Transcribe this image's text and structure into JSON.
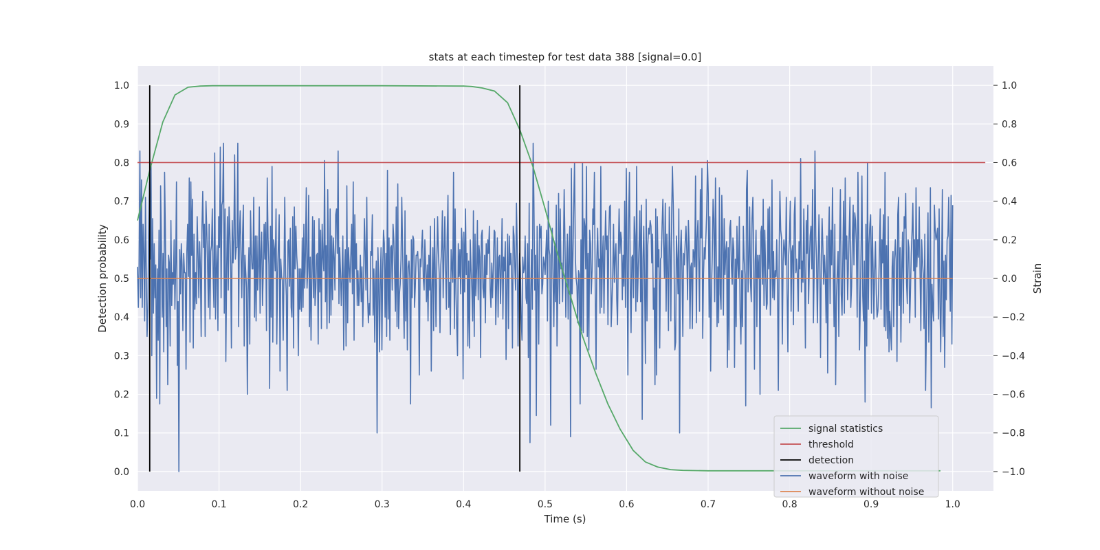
{
  "chart_data": {
    "type": "line",
    "title": "stats at each timestep for test data 388 [signal=0.0]",
    "xlabel": "Time (s)",
    "ylabel": "Detection probability",
    "y2label": "Strain",
    "xlim": [
      0.0,
      1.05
    ],
    "ylim": [
      -0.05,
      1.05
    ],
    "y2lim": [
      -1.1,
      1.1
    ],
    "grid": true,
    "legend_position": "bottom-right",
    "x_ticks": [
      "0.0",
      "0.1",
      "0.2",
      "0.3",
      "0.4",
      "0.5",
      "0.6",
      "0.7",
      "0.8",
      "0.9",
      "1.0"
    ],
    "y_ticks": [
      "0.0",
      "0.1",
      "0.2",
      "0.3",
      "0.4",
      "0.5",
      "0.6",
      "0.7",
      "0.8",
      "0.9",
      "1.0"
    ],
    "y2_ticks": [
      "−1.0",
      "−0.8",
      "−0.6",
      "−0.4",
      "−0.2",
      "0.0",
      "0.2",
      "0.4",
      "0.6",
      "0.8",
      "1.0"
    ],
    "series": [
      {
        "name": "signal statistics",
        "axis": "left",
        "color": "#55a868",
        "x": [
          0.0,
          0.015,
          0.031,
          0.046,
          0.062,
          0.077,
          0.092,
          0.108,
          0.2,
          0.3,
          0.4,
          0.41,
          0.423,
          0.438,
          0.454,
          0.469,
          0.485,
          0.5,
          0.515,
          0.531,
          0.546,
          0.562,
          0.577,
          0.592,
          0.608,
          0.623,
          0.638,
          0.654,
          0.669,
          0.7,
          0.8,
          0.9,
          0.985
        ],
        "y": [
          0.65,
          0.78,
          0.905,
          0.975,
          0.995,
          0.998,
          0.999,
          0.999,
          0.999,
          0.999,
          0.998,
          0.997,
          0.993,
          0.985,
          0.955,
          0.885,
          0.79,
          0.68,
          0.565,
          0.455,
          0.35,
          0.255,
          0.175,
          0.11,
          0.055,
          0.025,
          0.012,
          0.005,
          0.003,
          0.002,
          0.002,
          0.002,
          0.002
        ]
      },
      {
        "name": "threshold",
        "axis": "left",
        "color": "#c44e52",
        "x": [
          0.0,
          1.04
        ],
        "y": [
          0.8,
          0.8
        ]
      },
      {
        "name": "detection",
        "axis": "left",
        "color": "#000000",
        "x": [
          0.015,
          0.469
        ],
        "y": [
          0.0,
          1.0
        ]
      },
      {
        "name": "waveform with noise",
        "axis": "right",
        "color": "#4c72b0",
        "x_start": 0.0,
        "x_end": 1.0,
        "values": [
          0.06,
          -0.15,
          0.07,
          0.66,
          -0.1,
          0.51,
          -0.15,
          0.28,
          0.14,
          -0.22,
          0.42,
          0.05,
          -0.3,
          -0.16,
          0.22,
          0.5,
          0.1,
          0.6,
          -0.4,
          0.31,
          -0.18,
          0.18,
          -0.1,
          0.07,
          -0.62,
          0.05,
          -0.32,
          0.25,
          -0.65,
          0.48,
          0.2,
          -0.2,
          0.13,
          -0.38,
          0.55,
          0.25,
          -0.25,
          0.05,
          -0.55,
          0.12,
          0.08,
          -0.35,
          0.3,
          -0.14,
          0.03,
          -0.03,
          0.2,
          -0.16,
          0.08,
          0.5,
          -0.45,
          -0.12,
          -1.0,
          0.15,
          -0.08,
          0.18,
          0.07,
          -0.27,
          0.13,
          0.03,
          0.03,
          -0.47,
          0.14,
          0.28,
          0.01,
          0.52,
          -0.33,
          0.5,
          0.12,
          0.41,
          -0.36,
          0.23,
          -0.16,
          0.03,
          -0.13,
          0.32,
          0.13,
          -0.1,
          0.19,
          0.05,
          -0.3,
          0.27,
          0.45,
          0.16,
          0.28,
          -0.3,
          0.4,
          0.26,
          0.08,
          -0.15,
          0.28,
          -0.21,
          0.14,
          0.17,
          0.36,
          0.02,
          -0.15,
          0.65,
          -0.21,
          0.04,
          0.17,
          -0.27,
          0.32,
          0.16,
          0.68,
          -0.1,
          0.38,
          0.4,
          0.7,
          -0.18,
          0.36,
          -0.43,
          0.05,
          0.32,
          -0.06,
          0.37,
          0.25,
          0.06,
          -0.36,
          0.3,
          0.08,
          0.2,
          0.64,
          0.1,
          0.16,
          0.16,
          0.7,
          -0.25,
          0.22,
          0.35,
          0.13,
          -0.1,
          0.22,
          0.38,
          -0.35,
          0.12,
          0.03,
          -0.05,
          -0.6,
          0.0,
          0.16,
          -0.34,
          0.35,
          0.13,
          0.05,
          0.05,
          0.42,
          -0.2,
          0.22,
          -0.22,
          0.22,
          -0.06,
          0.07,
          0.37,
          -0.18,
          0.14,
          0.24,
          -0.14,
          0.05,
          0.28,
          0.1,
          0.29,
          -0.27,
          0.52,
          0.21,
          0.07,
          -0.57,
          0.27,
          -0.2,
          0.58,
          -0.33,
          0.2,
          0.15,
          0.04,
          0.36,
          -0.34,
          0.03,
          0.18,
          0.33,
          -0.48,
          0.1,
          0.01,
          -0.01,
          -0.32,
          0.04,
          0.42,
          0.02,
          -0.09,
          -0.58,
          0.19,
          0.2,
          -0.04,
          0.26,
          -0.15,
          -0.2,
          0.32,
          -0.36,
          0.37,
          0.05,
          0.27,
          0.12,
          0.05,
          -0.4,
          0.05,
          -0.16,
          0.05,
          -0.17,
          0.21,
          -0.15,
          0.28,
          -0.05,
          0.14,
          0.47,
          -0.05,
          0.06,
          0.43,
          -0.25,
          0.11,
          -0.32,
          0.03,
          0.32,
          -0.1,
          0.3,
          -0.14,
          -0.05,
          0.12,
          0.13,
          -0.34,
          0.31,
          -0.07,
          0.25,
          -0.26,
          0.28,
          0.11,
          0.04,
          0.61,
          -0.12,
          0.17,
          -0.26,
          0.46,
          0.08,
          -0.23,
          0.36,
          -0.19,
          0.22,
          -0.11,
          0.21,
          0.11,
          -0.06,
          0.33,
          0.36,
          0.13,
          0.66,
          -0.13,
          0.16,
          0.03,
          -0.14,
          0.02,
          0.22,
          -0.37,
          0.04,
          0.15,
          -0.35,
          0.48,
          -0.23,
          0.16,
          0.06,
          -0.02,
          0.12,
          0.28,
          -0.08,
          0.5,
          -0.32,
          0.33,
          0.05,
          0.18,
          -0.14,
          0.04,
          -0.14,
          -0.04,
          0.12,
          -0.12,
          0.06,
          -0.25,
          -0.03,
          0.31,
          0.14,
          -0.06,
          0.42,
          -0.08,
          -0.23,
          -0.13,
          -0.19,
          0.14,
          0.12,
          0.33,
          -0.19,
          0.05,
          -0.33,
          -0.02,
          0.09,
          -0.8,
          0.16,
          -0.03,
          -0.38,
          0.01,
          0.16,
          -0.37,
          0.04,
          0.25,
          0.18,
          -0.2,
          0.13,
          -0.3,
          0.56,
          -0.21,
          0.21,
          -0.32,
          0.16,
          0.17,
          -0.06,
          0.28,
          0.2,
          0.03,
          -0.17,
          0.37,
          -0.25,
          0.49,
          -0.26,
          -0.08,
          -0.03,
          0.1,
          0.42,
          0.16,
          -0.1,
          -0.31,
          0.35,
          -0.22,
          0.12,
          -0.37,
          0.06,
          0.09,
          0.01,
          -0.65,
          0.2,
          -0.1,
          0.22,
          0.2,
          -0.15,
          -0.04,
          0.12,
          0.12,
          0.14,
          0.03,
          -0.5,
          0.1,
          0.06,
          0.17,
          0.25,
          0.0,
          -0.06,
          0.2,
          0.06,
          -0.12,
          0.07,
          -0.22,
          0.12,
          -0.06,
          0.27,
          -0.48,
          -0.05,
          0.16,
          -0.27,
          0.31,
          0.02,
          -0.25,
          0.1,
          0.32,
          0.13,
          0.02,
          -0.28,
          0.07,
          0.15,
          0.35,
          -0.1,
          0.12,
          0.32,
          0.06,
          -0.16,
          0.21,
          0.43,
          -0.15,
          -0.02,
          -0.29,
          0.15,
          0.06,
          -0.02,
          0.55,
          -0.26,
          0.36,
          -0.08,
          -0.24,
          -0.4,
          0.18,
          0.01,
          0.15,
          -0.08,
          0.26,
          0.18,
          -0.52,
          0.24,
          -0.07,
          0.36,
          0.02,
          0.13,
          -0.35,
          0.09,
          -0.36,
          0.2,
          0.05,
          -0.05,
          -0.22,
          0.35,
          -0.3,
          0.23,
          -0.09,
          0.05,
          0.3,
          -0.11,
          0.17,
          0.11,
          -0.41,
          0.22,
          0.25,
          -0.05,
          -0.1,
          0.12,
          -0.23,
          0.18,
          0.02,
          0.2,
          0.13,
          0.27,
          -0.06,
          -0.15,
          0.08,
          -0.1,
          0.05,
          0.25,
          0.24,
          -0.24,
          -0.05,
          0.21,
          -0.2,
          0.11,
          0.12,
          -0.13,
          0.06,
          0.31,
          -0.21,
          0.11,
          0.04,
          0.19,
          -0.42,
          0.0,
          0.23,
          -0.26,
          0.22,
          0.07,
          0.13,
          0.03,
          -0.36,
          0.27,
          0.22,
          0.05,
          -0.06,
          0.39,
          0.16,
          -0.35,
          -0.04,
          0.13,
          0.03,
          -0.21,
          -0.32,
          0.11,
          0.03,
          0.05,
          0.22,
          -0.1,
          -0.13,
          0.18,
          -0.41,
          0.39,
          -0.85,
          -0.08,
          0.15,
          -0.16,
          0.7,
          0.4,
          -0.06,
          0.12,
          -0.71,
          0.27,
          0.01,
          -0.34,
          0.28,
          0.21,
          0.27,
          -0.08,
          -0.03,
          0.11,
          0.08,
          0.02,
          0.14,
          0.25,
          -0.22,
          0.4,
          0.15,
          0.12,
          -0.76,
          0.12,
          0.26,
          0.01,
          -0.25,
          0.17,
          -0.12,
          0.38,
          -0.35,
          -0.04,
          0.44,
          -0.13,
          0.36,
          0.05,
          0.08,
          -0.12,
          0.13,
          0.46,
          0.19,
          -0.2,
          0.06,
          0.23,
          -0.21,
          0.15,
          0.27,
          -0.82,
          0.57,
          -0.08,
          0.12,
          0.38,
          0.6,
          0.11,
          0.0,
          -0.04,
          -0.23,
          0.04,
          0.02,
          -0.65,
          0.2,
          -0.27,
          0.6,
          -0.28,
          0.31,
          0.27,
          0.05,
          0.58,
          -0.3,
          0.13,
          -0.37,
          0.25,
          0.18,
          -0.08,
          0.04,
          0.36,
          0.28,
          0.55,
          -0.05,
          -0.47,
          0.09,
          0.26,
          0.06,
          0.1,
          -0.18,
          0.58,
          -0.15,
          0.1,
          0.22,
          -0.18,
          0.13,
          0.35,
          0.15,
          0.22,
          -0.24,
          0.22,
          0.37,
          0.38,
          -0.25,
          -0.13,
          0.02,
          0.28,
          -0.02,
          0.12,
          0.18,
          -0.11,
          -0.24,
          0.14,
          0.36,
          0.13,
          0.24,
          0.2,
          -0.11,
          0.12,
          -0.04,
          0.4,
          -0.15,
          0.57,
          0.07,
          -0.5,
          0.31,
          0.55,
          -0.04,
          -0.28,
          0.11,
          0.12,
          -0.1,
          0.32,
          0.22,
          -0.17,
          0.58,
          -0.12,
          0.03,
          0.17,
          0.35,
          -0.12,
          0.38,
          -0.73,
          0.1,
          0.27,
          -0.03,
          -0.44,
          0.41,
          -0.22,
          0.17,
          0.26,
          0.23,
          0.3,
          0.27,
          0.08,
          0.23,
          -0.16,
          -0.05,
          -0.55,
          0.36,
          -0.5,
          0.32,
          0.06,
          0.15,
          -0.36,
          0.1,
          0.11,
          0.28,
          0.41,
          0.15,
          0.0,
          0.39,
          -0.17,
          0.23,
          0.04,
          -0.27,
          0.37,
          0.15,
          -0.22,
          0.34,
          0.58,
          0.38,
          0.13,
          -0.37,
          -0.33,
          0.22,
          0.1,
          -0.08,
          0.36,
          -0.8,
          0.14,
          0.25,
          0.04,
          -0.3,
          0.13,
          0.07,
          0.19,
          0.27,
          0.14,
          -0.11,
          0.3,
          0.17,
          -0.26,
          0.06,
          0.08,
          -0.26,
          0.15,
          0.13,
          0.06,
          0.53,
          -0.23,
          0.21,
          0.3,
          0.1,
          -0.17,
          0.46,
          0.21,
          0.57,
          -0.31,
          0.02,
          0.16,
          0.1,
          0.22,
          0.34,
          0.61,
          0.44,
          -0.2,
          0.32,
          -0.48,
          -0.05,
          0.11,
          0.41,
          0.31,
          -0.12,
          0.52,
          0.13,
          -0.25,
          0.06,
          -0.23,
          0.47,
          -0.08,
          -0.16,
          0.43,
          0.21,
          -0.19,
          0.31,
          0.02,
          0.14,
          0.19,
          -0.46,
          0.16,
          -0.37,
          0.26,
          0.3,
          0.07,
          -0.03,
          0.21,
          0.15,
          -0.46,
          0.1,
          -0.25,
          0.27,
          0.08,
          0.0,
          0.32,
          -0.18,
          -0.34,
          0.04,
          -0.25,
          0.27,
          0.11,
          0.02,
          -0.66,
          0.46,
          0.56,
          -0.07,
          0.09,
          0.37,
          -0.02,
          -0.12,
          0.31,
          0.42,
          0.13,
          -0.47,
          0.09,
          0.25,
          -0.25,
          0.12,
          0.0,
          0.12,
          -0.6,
          0.24,
          0.27,
          -0.03,
          0.41,
          -0.14,
          0.25,
          0.05,
          -0.16,
          -0.13,
          0.36,
          0.05,
          0.37,
          -0.19,
          0.01,
          0.51,
          -0.1,
          0.14,
          -0.11,
          0.04,
          0.01,
          0.2,
          -0.07,
          -0.58,
          0.12,
          0.45,
          0.25,
          0.21,
          -0.34,
          0.09,
          0.2,
          0.15,
          0.07,
          0.42,
          -0.08,
          -0.38,
          0.12,
          0.2,
          0.4,
          -0.17,
          0.14,
          0.17,
          -0.24,
          0.33,
          0.42,
          0.03,
          0.1,
          0.01,
          -0.17,
          0.19,
          0.05,
          0.62,
          -0.07,
          0.09,
          -0.02,
          0.36,
          0.05,
          -0.36,
          0.3,
          0.13,
          0.38,
          -0.13,
          0.08,
          0.22,
          0.27,
          0.05,
          0.46,
          -0.23,
          0.02,
          0.66,
          0.22,
          0.09,
          -0.23,
          0.06,
          0.33,
          0.12,
          -0.41,
          0.12,
          0.31,
          0.15,
          -0.03,
          0.12,
          0.02,
          -0.23,
          0.22,
          -0.49,
          0.2,
          0.37,
          -0.13,
          0.25,
          0.07,
          0.47,
          0.05,
          -0.25,
          0.28,
          -0.55,
          -0.09,
          0.03,
          0.14,
          -0.3,
          0.2,
          0.46,
          -0.08,
          -0.19,
          0.1,
          0.4,
          -0.18,
          0.52,
          0.1,
          0.22,
          -0.11,
          0.06,
          0.24,
          0.42,
          -0.15,
          -0.04,
          0.2,
          0.38,
          0.07,
          0.34,
          0.3,
          0.18,
          -0.2,
          0.55,
          0.22,
          -0.37,
          -0.12,
          0.18,
          0.53,
          -0.09,
          -0.22,
          0.09,
          -0.64,
          0.28,
          -0.35,
          0.6,
          -0.16,
          0.18,
          0.28,
          0.33,
          -0.18,
          0.27,
          0.06,
          -0.21,
          0.04,
          0.19,
          -0.08,
          -0.2,
          -0.17,
          -0.06,
          0.15,
          0.36,
          -0.16,
          0.2,
          0.08,
          0.33,
          -0.25,
          0.55,
          -0.27,
          0.17,
          -0.31,
          0.32,
          -0.38,
          -0.17,
          -0.27,
          -0.37,
          0.06,
          0.14,
          -0.25,
          0.1,
          0.2,
          0.09,
          -0.43,
          0.33,
          0.42,
          -0.14,
          0.16,
          -0.33,
          0.05,
          0.24,
          -0.18,
          0.32,
          0.26,
          0.44,
          -0.02,
          -0.13,
          0.2,
          0.16,
          -0.23,
          -0.07,
          0.13,
          0.25,
          0.39,
          0.04,
          0.2,
          -0.2,
          0.47,
          0.06,
          0.2,
          0.11,
          0.37,
          0.04,
          -0.27,
          0.2,
          0.1,
          0.02,
          -0.26,
          0.23,
          -0.58,
          -0.27,
          0.06,
          0.34,
          -0.33,
          -0.11,
          0.47,
          -0.67,
          -0.03,
          -0.16,
          -0.22,
          0.38,
          0.26,
          0.2,
          0.22,
          0.26,
          -0.21,
          0.36,
          -0.12,
          -0.38,
          0.02,
          0.46,
          -0.3,
          0.09,
          -0.46,
          0.12,
          -0.11,
          0.2,
          0.22,
          0.42,
          0.09,
          -0.17,
          0.43,
          -0.34,
          0.38
        ]
      },
      {
        "name": "waveform without noise",
        "axis": "right",
        "color": "#dd8452",
        "x": [
          0.0,
          1.0
        ],
        "y": [
          0.0,
          0.0
        ]
      }
    ]
  }
}
